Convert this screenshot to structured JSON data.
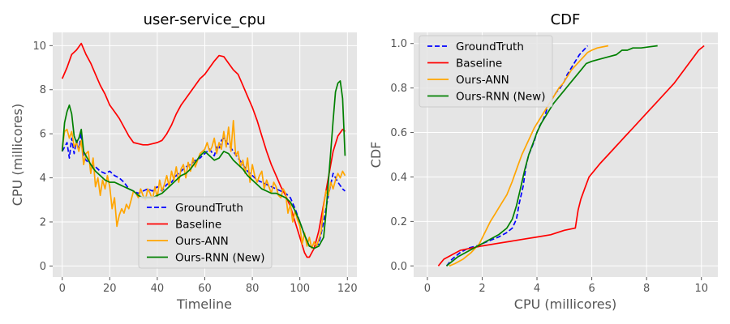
{
  "chart_data": [
    {
      "type": "line",
      "title": "user-service_cpu",
      "xlabel": "Timeline",
      "ylabel": "CPU (millicores)",
      "xlim": [
        -4,
        124
      ],
      "ylim": [
        -0.5,
        10.6
      ],
      "xticks": [
        0,
        20,
        40,
        60,
        80,
        100,
        120
      ],
      "yticks": [
        0,
        2,
        4,
        6,
        8,
        10
      ],
      "grid": true,
      "legend_position": "bottom-center",
      "series": [
        {
          "name": "GroundTruth",
          "color": "#0000ff",
          "dash": "dashed",
          "x": [
            0,
            2,
            3,
            4,
            5,
            6,
            7,
            8,
            9,
            10,
            12,
            14,
            16,
            18,
            20,
            22,
            24,
            26,
            28,
            30,
            32,
            34,
            36,
            38,
            40,
            42,
            44,
            46,
            48,
            50,
            52,
            54,
            56,
            58,
            60,
            62,
            64,
            65,
            66,
            67,
            68,
            70,
            72,
            74,
            76,
            78,
            80,
            82,
            84,
            86,
            88,
            90,
            92,
            94,
            96,
            98,
            100,
            102,
            104,
            106,
            108,
            110,
            112,
            114,
            116,
            118,
            119
          ],
          "y": [
            5.2,
            5.6,
            4.9,
            5.8,
            5.1,
            5.7,
            5.3,
            6.0,
            5.0,
            4.8,
            4.6,
            4.5,
            4.3,
            4.2,
            4.3,
            4.1,
            4.0,
            3.8,
            3.5,
            3.4,
            3.3,
            3.4,
            3.5,
            3.4,
            3.6,
            3.4,
            3.7,
            3.8,
            4.1,
            4.3,
            4.5,
            4.6,
            4.8,
            4.9,
            5.1,
            5.3,
            5.0,
            5.4,
            5.3,
            5.7,
            5.8,
            5.5,
            5.2,
            4.9,
            4.6,
            4.3,
            4.1,
            3.9,
            3.8,
            3.7,
            3.6,
            3.5,
            3.4,
            3.3,
            3.1,
            2.6,
            2.0,
            1.4,
            0.9,
            0.9,
            1.0,
            2.0,
            3.2,
            4.2,
            3.8,
            3.5,
            3.4
          ]
        },
        {
          "name": "Baseline",
          "color": "#ff0000",
          "dash": "solid",
          "x": [
            0,
            2,
            4,
            6,
            8,
            10,
            12,
            14,
            16,
            18,
            20,
            22,
            24,
            26,
            28,
            30,
            32,
            34,
            36,
            38,
            40,
            42,
            44,
            46,
            48,
            50,
            52,
            54,
            56,
            58,
            60,
            62,
            64,
            66,
            68,
            70,
            72,
            74,
            76,
            78,
            80,
            82,
            84,
            86,
            88,
            90,
            92,
            94,
            96,
            98,
            100,
            102,
            103,
            104,
            106,
            108,
            110,
            112,
            114,
            116,
            118,
            119
          ],
          "y": [
            8.5,
            9.0,
            9.6,
            9.8,
            10.1,
            9.6,
            9.2,
            8.7,
            8.2,
            7.8,
            7.3,
            7.0,
            6.7,
            6.3,
            5.9,
            5.6,
            5.55,
            5.5,
            5.5,
            5.55,
            5.6,
            5.7,
            6.0,
            6.4,
            6.9,
            7.3,
            7.6,
            7.9,
            8.2,
            8.5,
            8.7,
            9.0,
            9.3,
            9.55,
            9.5,
            9.2,
            8.9,
            8.7,
            8.2,
            7.7,
            7.2,
            6.6,
            5.9,
            5.2,
            4.6,
            4.1,
            3.6,
            3.2,
            2.7,
            2.0,
            1.3,
            0.6,
            0.4,
            0.4,
            0.8,
            1.6,
            2.8,
            4.0,
            5.2,
            5.9,
            6.2,
            6.1
          ]
        },
        {
          "name": "Ours-ANN",
          "color": "#ffa500",
          "dash": "solid",
          "x": [
            0,
            1,
            2,
            3,
            4,
            5,
            6,
            7,
            8,
            9,
            10,
            11,
            12,
            13,
            14,
            15,
            16,
            17,
            18,
            19,
            20,
            21,
            22,
            23,
            24,
            25,
            26,
            27,
            28,
            29,
            30,
            31,
            32,
            33,
            34,
            35,
            36,
            37,
            38,
            39,
            40,
            41,
            42,
            43,
            44,
            45,
            46,
            47,
            48,
            49,
            50,
            51,
            52,
            53,
            54,
            55,
            56,
            57,
            58,
            59,
            60,
            61,
            62,
            63,
            64,
            65,
            66,
            67,
            68,
            69,
            70,
            71,
            72,
            73,
            74,
            75,
            76,
            77,
            78,
            79,
            80,
            81,
            82,
            83,
            84,
            85,
            86,
            87,
            88,
            89,
            90,
            91,
            92,
            93,
            94,
            95,
            96,
            97,
            98,
            99,
            100,
            101,
            102,
            103,
            104,
            105,
            106,
            107,
            108,
            109,
            110,
            111,
            112,
            113,
            114,
            115,
            116,
            117,
            118,
            119
          ],
          "y": [
            5.3,
            6.1,
            6.2,
            5.8,
            6.1,
            5.4,
            5.6,
            5.2,
            5.7,
            4.6,
            5.1,
            5.2,
            4.2,
            4.9,
            3.6,
            4.0,
            3.2,
            3.9,
            3.5,
            4.1,
            3.6,
            2.6,
            3.1,
            1.8,
            2.3,
            2.6,
            2.4,
            2.8,
            2.6,
            3.0,
            3.4,
            3.3,
            3.1,
            3.5,
            3.2,
            3.0,
            3.5,
            3.3,
            3.0,
            3.6,
            3.1,
            3.9,
            3.4,
            3.7,
            4.1,
            3.6,
            4.3,
            3.9,
            4.5,
            3.8,
            4.4,
            4.6,
            4.0,
            4.7,
            4.3,
            4.9,
            4.5,
            4.8,
            5.1,
            5.2,
            5.3,
            5.6,
            5.2,
            5.4,
            5.8,
            5.1,
            5.6,
            5.3,
            6.1,
            5.4,
            6.3,
            5.2,
            6.6,
            5.0,
            5.2,
            4.5,
            4.8,
            4.2,
            4.9,
            3.8,
            4.6,
            4.1,
            3.8,
            4.1,
            4.3,
            3.5,
            3.9,
            3.6,
            3.3,
            3.8,
            3.6,
            3.2,
            3.1,
            3.5,
            3.3,
            2.4,
            2.8,
            2.0,
            2.5,
            2.1,
            1.8,
            1.0,
            1.5,
            0.9,
            1.3,
            0.8,
            1.1,
            0.9,
            1.2,
            1.6,
            2.7,
            3.4,
            3.2,
            3.8,
            3.5,
            3.9,
            4.2,
            4.0,
            4.3,
            4.1
          ]
        },
        {
          "name": "Ours-RNN (New)",
          "color": "#008000",
          "dash": "solid",
          "x": [
            0,
            1,
            2,
            3,
            4,
            5,
            6,
            7,
            8,
            9,
            10,
            12,
            14,
            16,
            18,
            20,
            22,
            24,
            26,
            28,
            30,
            32,
            34,
            36,
            38,
            40,
            42,
            44,
            46,
            48,
            50,
            52,
            54,
            56,
            58,
            60,
            62,
            64,
            66,
            68,
            70,
            72,
            74,
            76,
            78,
            80,
            82,
            84,
            86,
            88,
            90,
            92,
            94,
            96,
            98,
            100,
            102,
            104,
            106,
            108,
            110,
            111,
            112,
            113,
            114,
            115,
            116,
            117,
            118,
            119
          ],
          "y": [
            5.2,
            6.5,
            7.0,
            7.3,
            6.9,
            5.9,
            5.6,
            5.8,
            6.2,
            5.2,
            5.0,
            4.6,
            4.3,
            4.1,
            3.9,
            3.8,
            3.8,
            3.7,
            3.6,
            3.5,
            3.4,
            3.2,
            3.1,
            3.1,
            3.1,
            3.2,
            3.3,
            3.5,
            3.7,
            3.9,
            4.1,
            4.2,
            4.4,
            4.7,
            5.0,
            5.2,
            5.0,
            4.8,
            4.9,
            5.2,
            5.1,
            4.8,
            4.6,
            4.4,
            4.1,
            3.9,
            3.7,
            3.5,
            3.4,
            3.3,
            3.3,
            3.2,
            3.1,
            2.9,
            2.5,
            2.0,
            1.4,
            0.9,
            0.8,
            0.9,
            1.3,
            2.4,
            3.8,
            5.2,
            6.6,
            7.9,
            8.3,
            8.4,
            7.6,
            5.0
          ]
        }
      ]
    },
    {
      "type": "line",
      "title": "CDF",
      "xlabel": "CPU (millicores)",
      "ylabel": "CDF",
      "xlim": [
        -0.5,
        10.6
      ],
      "ylim": [
        -0.05,
        1.05
      ],
      "xticks": [
        0,
        2,
        4,
        6,
        8,
        10
      ],
      "yticks": [
        "0.0",
        "0.2",
        "0.4",
        "0.6",
        "0.8",
        "1.0"
      ],
      "grid": true,
      "legend_position": "top-left",
      "series": [
        {
          "name": "GroundTruth",
          "color": "#0000ff",
          "dash": "dashed",
          "x": [
            0.7,
            0.9,
            1.2,
            1.5,
            1.8,
            2.2,
            2.6,
            2.9,
            3.1,
            3.25,
            3.35,
            3.5,
            3.6,
            3.7,
            3.8,
            3.9,
            4.0,
            4.1,
            4.2,
            4.3,
            4.4,
            4.55,
            4.7,
            4.85,
            5.0,
            5.1,
            5.25,
            5.4,
            5.55,
            5.7,
            5.85
          ],
          "y": [
            0.0,
            0.03,
            0.06,
            0.08,
            0.09,
            0.11,
            0.13,
            0.15,
            0.17,
            0.21,
            0.28,
            0.36,
            0.45,
            0.5,
            0.53,
            0.56,
            0.6,
            0.63,
            0.65,
            0.68,
            0.72,
            0.75,
            0.78,
            0.8,
            0.83,
            0.86,
            0.89,
            0.92,
            0.95,
            0.97,
            0.99
          ]
        },
        {
          "name": "Baseline",
          "color": "#ff0000",
          "dash": "solid",
          "x": [
            0.4,
            0.6,
            0.9,
            1.2,
            1.6,
            2.0,
            2.5,
            3.0,
            3.5,
            4.0,
            4.5,
            5.0,
            5.4,
            5.45,
            5.5,
            5.6,
            5.75,
            5.9,
            6.1,
            6.3,
            6.6,
            6.9,
            7.2,
            7.5,
            7.8,
            8.1,
            8.4,
            8.7,
            9.0,
            9.3,
            9.6,
            9.9,
            10.1
          ],
          "y": [
            0.0,
            0.03,
            0.05,
            0.07,
            0.08,
            0.09,
            0.1,
            0.11,
            0.12,
            0.13,
            0.14,
            0.16,
            0.17,
            0.21,
            0.25,
            0.3,
            0.35,
            0.4,
            0.43,
            0.46,
            0.5,
            0.54,
            0.58,
            0.62,
            0.66,
            0.7,
            0.74,
            0.78,
            0.82,
            0.87,
            0.92,
            0.97,
            0.99
          ]
        },
        {
          "name": "Ours-ANN",
          "color": "#ffa500",
          "dash": "solid",
          "x": [
            0.8,
            1.0,
            1.3,
            1.6,
            1.9,
            2.1,
            2.3,
            2.5,
            2.7,
            2.9,
            3.1,
            3.3,
            3.45,
            3.6,
            3.75,
            3.9,
            4.05,
            4.2,
            4.35,
            4.5,
            4.65,
            4.8,
            4.95,
            5.1,
            5.25,
            5.4,
            5.55,
            5.7,
            5.85,
            6.0,
            6.2,
            6.6
          ],
          "y": [
            0.0,
            0.01,
            0.03,
            0.06,
            0.1,
            0.15,
            0.2,
            0.24,
            0.28,
            0.32,
            0.38,
            0.45,
            0.5,
            0.54,
            0.58,
            0.62,
            0.65,
            0.68,
            0.71,
            0.74,
            0.77,
            0.8,
            0.82,
            0.85,
            0.88,
            0.9,
            0.92,
            0.94,
            0.96,
            0.97,
            0.98,
            0.99
          ]
        },
        {
          "name": "Ours-RNN (New)",
          "color": "#008000",
          "dash": "solid",
          "x": [
            0.7,
            0.9,
            1.1,
            1.4,
            1.7,
            2.0,
            2.3,
            2.6,
            2.9,
            3.1,
            3.25,
            3.4,
            3.55,
            3.7,
            3.85,
            4.0,
            4.15,
            4.3,
            4.45,
            4.6,
            4.8,
            5.0,
            5.2,
            5.4,
            5.6,
            5.8,
            6.0,
            6.3,
            6.6,
            6.9,
            7.1,
            7.3,
            7.5,
            7.8,
            8.1,
            8.4
          ],
          "y": [
            0.0,
            0.02,
            0.04,
            0.06,
            0.08,
            0.1,
            0.12,
            0.14,
            0.17,
            0.21,
            0.27,
            0.35,
            0.43,
            0.5,
            0.55,
            0.6,
            0.64,
            0.67,
            0.7,
            0.73,
            0.76,
            0.79,
            0.82,
            0.85,
            0.88,
            0.91,
            0.92,
            0.93,
            0.94,
            0.95,
            0.97,
            0.97,
            0.98,
            0.98,
            0.985,
            0.99
          ]
        }
      ]
    }
  ]
}
